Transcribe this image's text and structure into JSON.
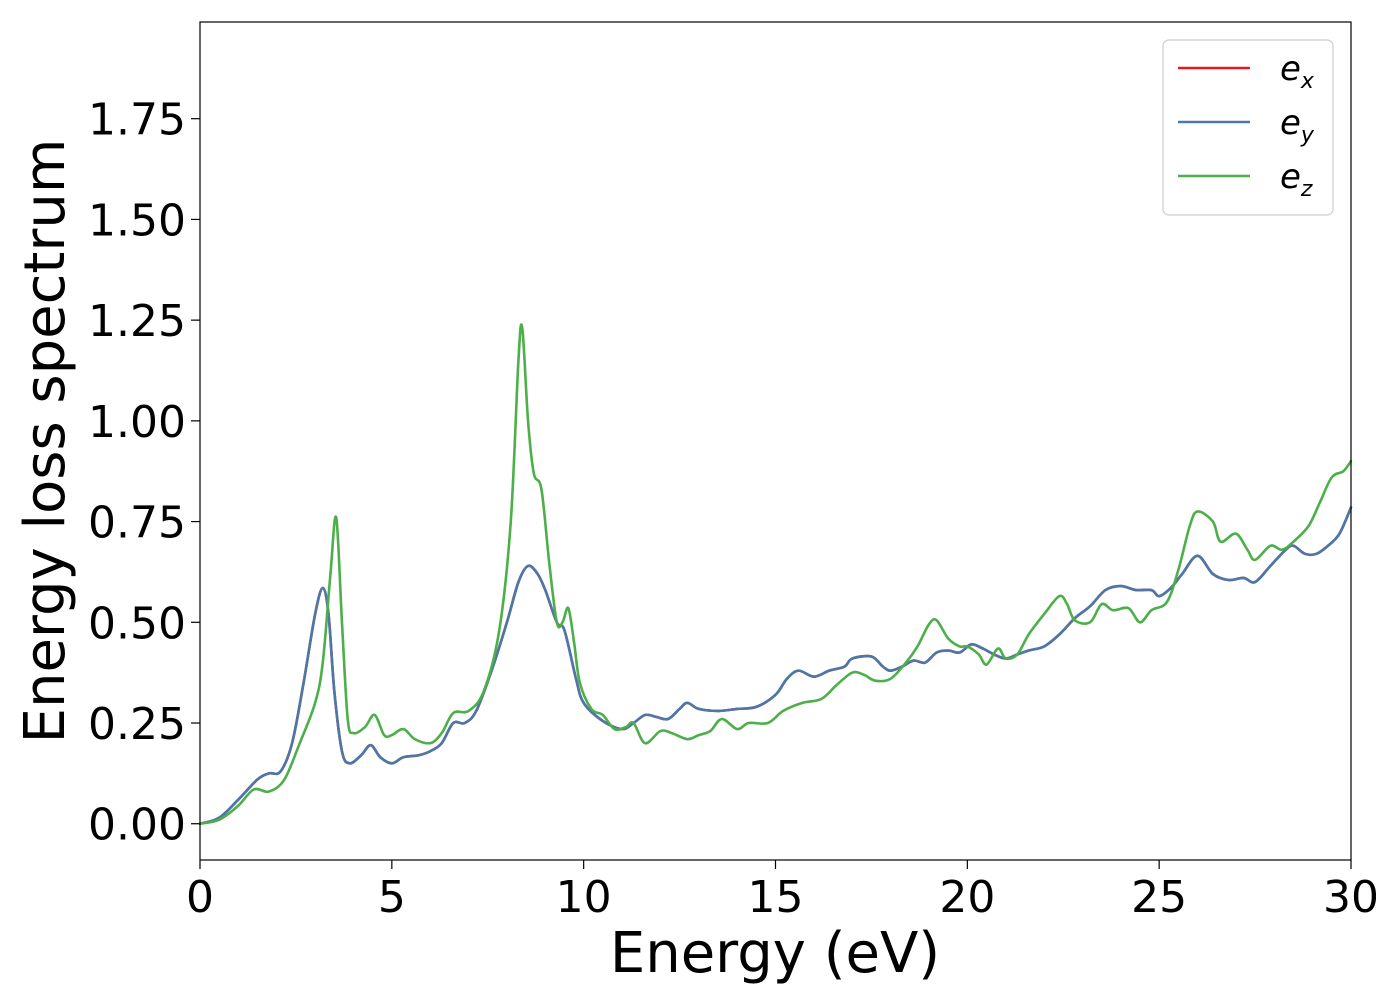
{
  "chart_data": {
    "type": "line",
    "title": "",
    "xlabel": "Energy (eV)",
    "ylabel": "Energy loss spectrum",
    "xlim": [
      0,
      30
    ],
    "ylim": [
      -0.09,
      1.99
    ],
    "x_ticks": [
      0,
      5,
      10,
      15,
      20,
      25,
      30
    ],
    "x_tick_labels": [
      "0",
      "5",
      "10",
      "15",
      "20",
      "25",
      "30"
    ],
    "y_ticks": [
      0,
      0.25,
      0.5,
      0.75,
      1.0,
      1.25,
      1.5,
      1.75
    ],
    "y_tick_labels": [
      "0.00",
      "0.25",
      "0.50",
      "0.75",
      "1.00",
      "1.25",
      "1.50",
      "1.75"
    ],
    "grid": false,
    "legend_position": "top-right",
    "series": [
      {
        "name": "e_x",
        "label_main": "e",
        "label_sub": "x",
        "color": "#e41a1c",
        "points": [
          [
            0,
            0.0
          ],
          [
            0.5,
            0.015
          ],
          [
            1.0,
            0.06
          ],
          [
            1.5,
            0.11
          ],
          [
            1.8,
            0.125
          ],
          [
            2.1,
            0.13
          ],
          [
            2.4,
            0.2
          ],
          [
            2.7,
            0.35
          ],
          [
            3.0,
            0.52
          ],
          [
            3.2,
            0.585
          ],
          [
            3.35,
            0.52
          ],
          [
            3.5,
            0.33
          ],
          [
            3.7,
            0.18
          ],
          [
            3.9,
            0.15
          ],
          [
            4.2,
            0.17
          ],
          [
            4.45,
            0.195
          ],
          [
            4.7,
            0.165
          ],
          [
            5.0,
            0.15
          ],
          [
            5.3,
            0.165
          ],
          [
            5.7,
            0.17
          ],
          [
            6.0,
            0.18
          ],
          [
            6.3,
            0.2
          ],
          [
            6.6,
            0.25
          ],
          [
            6.9,
            0.25
          ],
          [
            7.2,
            0.28
          ],
          [
            7.6,
            0.38
          ],
          [
            8.0,
            0.5
          ],
          [
            8.3,
            0.6
          ],
          [
            8.55,
            0.64
          ],
          [
            8.8,
            0.62
          ],
          [
            9.0,
            0.58
          ],
          [
            9.3,
            0.5
          ],
          [
            9.5,
            0.48
          ],
          [
            9.8,
            0.36
          ],
          [
            10.0,
            0.3
          ],
          [
            10.5,
            0.255
          ],
          [
            11.0,
            0.235
          ],
          [
            11.3,
            0.25
          ],
          [
            11.6,
            0.27
          ],
          [
            11.9,
            0.265
          ],
          [
            12.2,
            0.26
          ],
          [
            12.5,
            0.285
          ],
          [
            12.7,
            0.3
          ],
          [
            13.0,
            0.285
          ],
          [
            13.5,
            0.28
          ],
          [
            14.0,
            0.285
          ],
          [
            14.5,
            0.29
          ],
          [
            15.0,
            0.32
          ],
          [
            15.3,
            0.36
          ],
          [
            15.6,
            0.38
          ],
          [
            16.0,
            0.365
          ],
          [
            16.4,
            0.38
          ],
          [
            16.8,
            0.39
          ],
          [
            17.0,
            0.41
          ],
          [
            17.5,
            0.415
          ],
          [
            17.8,
            0.39
          ],
          [
            18.0,
            0.38
          ],
          [
            18.3,
            0.39
          ],
          [
            18.6,
            0.405
          ],
          [
            18.9,
            0.4
          ],
          [
            19.2,
            0.425
          ],
          [
            19.5,
            0.43
          ],
          [
            19.8,
            0.425
          ],
          [
            20.1,
            0.445
          ],
          [
            20.4,
            0.435
          ],
          [
            20.7,
            0.42
          ],
          [
            21.0,
            0.41
          ],
          [
            21.3,
            0.42
          ],
          [
            21.6,
            0.43
          ],
          [
            22.0,
            0.44
          ],
          [
            22.4,
            0.47
          ],
          [
            22.8,
            0.51
          ],
          [
            23.2,
            0.54
          ],
          [
            23.6,
            0.58
          ],
          [
            24.0,
            0.59
          ],
          [
            24.4,
            0.58
          ],
          [
            24.8,
            0.58
          ],
          [
            25.0,
            0.565
          ],
          [
            25.3,
            0.585
          ],
          [
            25.6,
            0.62
          ],
          [
            26.0,
            0.665
          ],
          [
            26.4,
            0.62
          ],
          [
            26.8,
            0.605
          ],
          [
            27.2,
            0.61
          ],
          [
            27.5,
            0.6
          ],
          [
            27.9,
            0.64
          ],
          [
            28.3,
            0.68
          ],
          [
            28.5,
            0.69
          ],
          [
            28.8,
            0.67
          ],
          [
            29.1,
            0.67
          ],
          [
            29.4,
            0.69
          ],
          [
            29.7,
            0.72
          ],
          [
            30.0,
            0.785
          ]
        ]
      },
      {
        "name": "e_y",
        "label_main": "e",
        "label_sub": "y",
        "color": "#4a78a8",
        "points": [
          [
            0,
            0.0
          ],
          [
            0.5,
            0.015
          ],
          [
            1.0,
            0.06
          ],
          [
            1.5,
            0.11
          ],
          [
            1.8,
            0.125
          ],
          [
            2.1,
            0.13
          ],
          [
            2.4,
            0.2
          ],
          [
            2.7,
            0.35
          ],
          [
            3.0,
            0.52
          ],
          [
            3.2,
            0.585
          ],
          [
            3.35,
            0.52
          ],
          [
            3.5,
            0.33
          ],
          [
            3.7,
            0.18
          ],
          [
            3.9,
            0.15
          ],
          [
            4.2,
            0.17
          ],
          [
            4.45,
            0.195
          ],
          [
            4.7,
            0.165
          ],
          [
            5.0,
            0.15
          ],
          [
            5.3,
            0.165
          ],
          [
            5.7,
            0.17
          ],
          [
            6.0,
            0.18
          ],
          [
            6.3,
            0.2
          ],
          [
            6.6,
            0.25
          ],
          [
            6.9,
            0.25
          ],
          [
            7.2,
            0.28
          ],
          [
            7.6,
            0.38
          ],
          [
            8.0,
            0.5
          ],
          [
            8.3,
            0.6
          ],
          [
            8.55,
            0.64
          ],
          [
            8.8,
            0.62
          ],
          [
            9.0,
            0.58
          ],
          [
            9.3,
            0.5
          ],
          [
            9.5,
            0.48
          ],
          [
            9.8,
            0.36
          ],
          [
            10.0,
            0.3
          ],
          [
            10.5,
            0.255
          ],
          [
            11.0,
            0.235
          ],
          [
            11.3,
            0.25
          ],
          [
            11.6,
            0.27
          ],
          [
            11.9,
            0.265
          ],
          [
            12.2,
            0.26
          ],
          [
            12.5,
            0.285
          ],
          [
            12.7,
            0.3
          ],
          [
            13.0,
            0.285
          ],
          [
            13.5,
            0.28
          ],
          [
            14.0,
            0.285
          ],
          [
            14.5,
            0.29
          ],
          [
            15.0,
            0.32
          ],
          [
            15.3,
            0.36
          ],
          [
            15.6,
            0.38
          ],
          [
            16.0,
            0.365
          ],
          [
            16.4,
            0.38
          ],
          [
            16.8,
            0.39
          ],
          [
            17.0,
            0.41
          ],
          [
            17.5,
            0.415
          ],
          [
            17.8,
            0.39
          ],
          [
            18.0,
            0.38
          ],
          [
            18.3,
            0.39
          ],
          [
            18.6,
            0.405
          ],
          [
            18.9,
            0.4
          ],
          [
            19.2,
            0.425
          ],
          [
            19.5,
            0.43
          ],
          [
            19.8,
            0.425
          ],
          [
            20.1,
            0.445
          ],
          [
            20.4,
            0.435
          ],
          [
            20.7,
            0.42
          ],
          [
            21.0,
            0.41
          ],
          [
            21.3,
            0.42
          ],
          [
            21.6,
            0.43
          ],
          [
            22.0,
            0.44
          ],
          [
            22.4,
            0.47
          ],
          [
            22.8,
            0.51
          ],
          [
            23.2,
            0.54
          ],
          [
            23.6,
            0.58
          ],
          [
            24.0,
            0.59
          ],
          [
            24.4,
            0.58
          ],
          [
            24.8,
            0.58
          ],
          [
            25.0,
            0.565
          ],
          [
            25.3,
            0.585
          ],
          [
            25.6,
            0.62
          ],
          [
            26.0,
            0.665
          ],
          [
            26.4,
            0.62
          ],
          [
            26.8,
            0.605
          ],
          [
            27.2,
            0.61
          ],
          [
            27.5,
            0.6
          ],
          [
            27.9,
            0.64
          ],
          [
            28.3,
            0.68
          ],
          [
            28.5,
            0.69
          ],
          [
            28.8,
            0.67
          ],
          [
            29.1,
            0.67
          ],
          [
            29.4,
            0.69
          ],
          [
            29.7,
            0.72
          ],
          [
            30.0,
            0.785
          ]
        ]
      },
      {
        "name": "e_z",
        "label_main": "e",
        "label_sub": "z",
        "color": "#4daf4a",
        "points": [
          [
            0,
            0.0
          ],
          [
            0.5,
            0.01
          ],
          [
            1.0,
            0.045
          ],
          [
            1.4,
            0.085
          ],
          [
            1.8,
            0.08
          ],
          [
            2.2,
            0.11
          ],
          [
            2.6,
            0.2
          ],
          [
            3.0,
            0.3
          ],
          [
            3.2,
            0.4
          ],
          [
            3.4,
            0.62
          ],
          [
            3.55,
            0.76
          ],
          [
            3.7,
            0.5
          ],
          [
            3.85,
            0.26
          ],
          [
            4.0,
            0.225
          ],
          [
            4.3,
            0.24
          ],
          [
            4.55,
            0.27
          ],
          [
            4.8,
            0.22
          ],
          [
            5.0,
            0.22
          ],
          [
            5.3,
            0.235
          ],
          [
            5.6,
            0.21
          ],
          [
            6.0,
            0.2
          ],
          [
            6.3,
            0.225
          ],
          [
            6.6,
            0.275
          ],
          [
            7.0,
            0.28
          ],
          [
            7.4,
            0.33
          ],
          [
            7.8,
            0.48
          ],
          [
            8.1,
            0.75
          ],
          [
            8.3,
            1.15
          ],
          [
            8.4,
            1.23
          ],
          [
            8.55,
            1.0
          ],
          [
            8.7,
            0.87
          ],
          [
            8.9,
            0.83
          ],
          [
            9.1,
            0.65
          ],
          [
            9.3,
            0.5
          ],
          [
            9.45,
            0.5
          ],
          [
            9.6,
            0.535
          ],
          [
            9.75,
            0.45
          ],
          [
            9.9,
            0.35
          ],
          [
            10.2,
            0.285
          ],
          [
            10.5,
            0.27
          ],
          [
            10.8,
            0.235
          ],
          [
            11.1,
            0.24
          ],
          [
            11.3,
            0.25
          ],
          [
            11.6,
            0.2
          ],
          [
            12.0,
            0.23
          ],
          [
            12.3,
            0.225
          ],
          [
            12.7,
            0.21
          ],
          [
            13.0,
            0.22
          ],
          [
            13.3,
            0.23
          ],
          [
            13.6,
            0.26
          ],
          [
            14.0,
            0.235
          ],
          [
            14.3,
            0.25
          ],
          [
            14.8,
            0.25
          ],
          [
            15.2,
            0.28
          ],
          [
            15.7,
            0.3
          ],
          [
            16.2,
            0.31
          ],
          [
            16.6,
            0.345
          ],
          [
            17.0,
            0.375
          ],
          [
            17.3,
            0.37
          ],
          [
            17.6,
            0.355
          ],
          [
            18.0,
            0.36
          ],
          [
            18.4,
            0.4
          ],
          [
            18.7,
            0.44
          ],
          [
            19.0,
            0.495
          ],
          [
            19.2,
            0.505
          ],
          [
            19.5,
            0.46
          ],
          [
            19.8,
            0.44
          ],
          [
            20.0,
            0.44
          ],
          [
            20.3,
            0.42
          ],
          [
            20.5,
            0.395
          ],
          [
            20.8,
            0.435
          ],
          [
            21.0,
            0.41
          ],
          [
            21.3,
            0.42
          ],
          [
            21.6,
            0.47
          ],
          [
            22.0,
            0.52
          ],
          [
            22.4,
            0.565
          ],
          [
            22.6,
            0.545
          ],
          [
            22.8,
            0.505
          ],
          [
            23.2,
            0.5
          ],
          [
            23.5,
            0.545
          ],
          [
            23.8,
            0.53
          ],
          [
            24.2,
            0.535
          ],
          [
            24.5,
            0.5
          ],
          [
            24.8,
            0.53
          ],
          [
            25.2,
            0.55
          ],
          [
            25.5,
            0.63
          ],
          [
            25.8,
            0.74
          ],
          [
            26.0,
            0.775
          ],
          [
            26.4,
            0.75
          ],
          [
            26.6,
            0.7
          ],
          [
            27.0,
            0.72
          ],
          [
            27.3,
            0.68
          ],
          [
            27.5,
            0.655
          ],
          [
            27.9,
            0.69
          ],
          [
            28.2,
            0.68
          ],
          [
            28.5,
            0.7
          ],
          [
            28.9,
            0.74
          ],
          [
            29.2,
            0.8
          ],
          [
            29.5,
            0.86
          ],
          [
            29.8,
            0.875
          ],
          [
            30.0,
            0.9
          ]
        ]
      }
    ]
  }
}
